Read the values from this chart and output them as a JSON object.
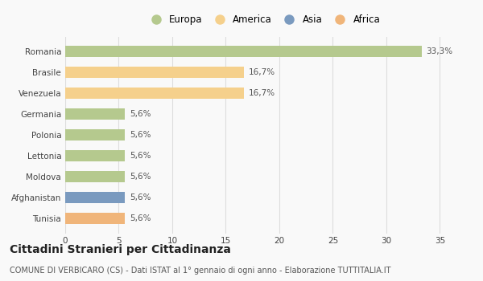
{
  "categories": [
    "Romania",
    "Brasile",
    "Venezuela",
    "Germania",
    "Polonia",
    "Lettonia",
    "Moldova",
    "Afghanistan",
    "Tunisia"
  ],
  "values": [
    33.3,
    16.7,
    16.7,
    5.6,
    5.6,
    5.6,
    5.6,
    5.6,
    5.6
  ],
  "labels": [
    "33,3%",
    "16,7%",
    "16,7%",
    "5,6%",
    "5,6%",
    "5,6%",
    "5,6%",
    "5,6%",
    "5,6%"
  ],
  "colors": [
    "#b5c98e",
    "#f5d08c",
    "#f5d08c",
    "#b5c98e",
    "#b5c98e",
    "#b5c98e",
    "#b5c98e",
    "#7a9abf",
    "#f0b57a"
  ],
  "legend_labels": [
    "Europa",
    "America",
    "Asia",
    "Africa"
  ],
  "legend_colors": [
    "#b5c98e",
    "#f5d08c",
    "#7a9abf",
    "#f0b57a"
  ],
  "xlim": [
    0,
    37
  ],
  "xticks": [
    0,
    5,
    10,
    15,
    20,
    25,
    30,
    35
  ],
  "title": "Cittadini Stranieri per Cittadinanza",
  "subtitle": "COMUNE DI VERBICARO (CS) - Dati ISTAT al 1° gennaio di ogni anno - Elaborazione TUTTITALIA.IT",
  "background_color": "#f9f9f9",
  "grid_color": "#dddddd",
  "bar_height": 0.55,
  "label_fontsize": 7.5,
  "tick_fontsize": 7.5,
  "title_fontsize": 10,
  "subtitle_fontsize": 7
}
